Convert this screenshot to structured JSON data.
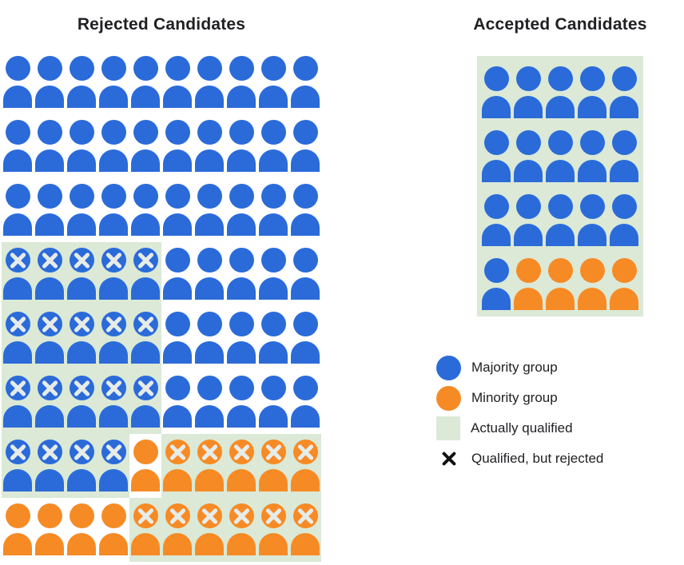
{
  "colors": {
    "majority": "#2b6bd9",
    "minority": "#f68b26",
    "qualified_bg": "#dbe9d6",
    "person_x": "#e7ece9",
    "legend_x": "#111111",
    "text": "#202124"
  },
  "rejected_panel": {
    "title": "Rejected Candidates",
    "rows": [
      "bbbbbbbbbb",
      "bbbbbbbbbb",
      "bbbbbbbbbb",
      "BBBBBbbbbb",
      "BBBBBbbbbb",
      "BBBBBbbbbb",
      "BBBBoOOOOO",
      "ooooOOOOOO"
    ],
    "code_legend": {
      "b": "majority group, rejected",
      "B": "majority group, qualified but rejected (green + X)",
      "o": "minority group, rejected",
      "O": "minority group, qualified but rejected (green + X)"
    }
  },
  "accepted_panel": {
    "title": "Accepted Candidates",
    "rows": [
      "bbbbb",
      "bbbbb",
      "bbbbb",
      "boooo"
    ],
    "all_actually_qualified": true
  },
  "legend": {
    "items": [
      {
        "icon": "circle-majority",
        "label": "Majority group"
      },
      {
        "icon": "circle-minority",
        "label": "Minority group"
      },
      {
        "icon": "square-qualified",
        "label": "Actually qualified"
      },
      {
        "icon": "x-mark",
        "label": "Qualified, but rejected"
      }
    ]
  },
  "chart_data": {
    "type": "pictogram",
    "panels": [
      {
        "title": "Rejected Candidates",
        "grid_columns": 10,
        "grid_rows": 8,
        "total_people": 80,
        "counts": {
          "majority_rejected_total": 64,
          "majority_qualified_but_rejected": 19,
          "majority_rejected_not_qualified": 45,
          "minority_rejected_total": 16,
          "minority_qualified_but_rejected": 11,
          "minority_rejected_not_qualified": 5
        }
      },
      {
        "title": "Accepted Candidates",
        "grid_columns": 5,
        "grid_rows": 4,
        "total_people": 20,
        "counts": {
          "majority_accepted": 16,
          "minority_accepted": 4
        },
        "all_accepted_actually_qualified": true
      }
    ],
    "legend": [
      "Majority group",
      "Minority group",
      "Actually qualified",
      "Qualified, but rejected"
    ],
    "encoding": "color = group (blue majority / orange minority); green backing = actually qualified; X = qualified but rejected"
  }
}
